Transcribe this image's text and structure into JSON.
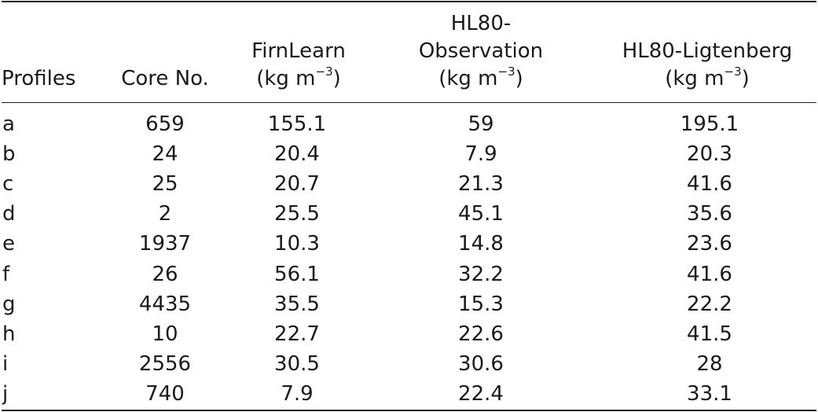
{
  "table": {
    "headers": [
      {
        "lines": [
          "Profiles"
        ]
      },
      {
        "lines": [
          "Core No."
        ]
      },
      {
        "lines": [
          "FirnLearn",
          "(kg m−3)"
        ]
      },
      {
        "lines": [
          "HL80-",
          "Observation",
          "(kg m−3)"
        ]
      },
      {
        "lines": [
          "HL80-Ligtenberg",
          "(kg m−3)"
        ]
      }
    ],
    "rows": [
      [
        "a",
        "659",
        "155.1",
        "59",
        "195.1"
      ],
      [
        "b",
        "24",
        "20.4",
        "7.9",
        "20.3"
      ],
      [
        "c",
        "25",
        "20.7",
        "21.3",
        "41.6"
      ],
      [
        "d",
        "2",
        "25.5",
        "45.1",
        "35.6"
      ],
      [
        "e",
        "1937",
        "10.3",
        "14.8",
        "23.6"
      ],
      [
        "f",
        "26",
        "56.1",
        "32.2",
        "41.6"
      ],
      [
        "g",
        "4435",
        "35.5",
        "15.3",
        "22.2"
      ],
      [
        "h",
        "10",
        "22.7",
        "22.6",
        "41.5"
      ],
      [
        "i",
        "2556",
        "30.5",
        "30.6",
        "28"
      ],
      [
        "j",
        "740",
        "7.9",
        "22.4",
        "33.1"
      ]
    ]
  }
}
